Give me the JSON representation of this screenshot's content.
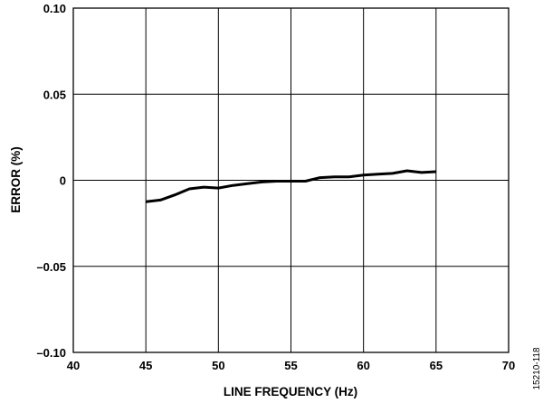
{
  "chart_data": {
    "type": "line",
    "xlabel": "LINE FREQUENCY (Hz)",
    "ylabel": "ERROR (%)",
    "xlim": [
      40,
      70
    ],
    "ylim": [
      -0.1,
      0.1
    ],
    "x_ticks": [
      40,
      45,
      50,
      55,
      60,
      65,
      70
    ],
    "x_tick_labels": [
      "40",
      "45",
      "50",
      "55",
      "60",
      "65",
      "70"
    ],
    "y_ticks": [
      0.1,
      0.05,
      0,
      -0.05,
      -0.1
    ],
    "y_tick_labels": [
      "0.10",
      "0.05",
      "0",
      "–0.05",
      "–0.10"
    ],
    "grid": true,
    "series": [
      {
        "x": [
          45,
          46,
          47,
          48,
          49,
          50,
          51,
          52,
          53,
          54,
          55,
          56,
          57,
          58,
          59,
          60,
          61,
          62,
          63,
          64,
          65
        ],
        "y": [
          -0.0125,
          -0.0115,
          -0.0085,
          -0.005,
          -0.004,
          -0.0045,
          -0.003,
          -0.002,
          -0.001,
          -0.0005,
          -0.0005,
          -0.0005,
          0.0015,
          0.002,
          0.002,
          0.003,
          0.0035,
          0.004,
          0.0055,
          0.0045,
          0.005
        ]
      }
    ],
    "figure_id": "15210-118"
  }
}
